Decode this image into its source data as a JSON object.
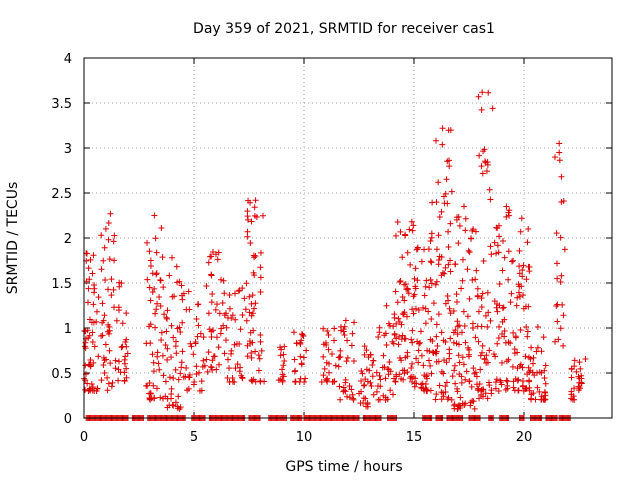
{
  "chart_data": {
    "type": "scatter",
    "title": "Day 359 of 2021, SRMTID for receiver cas1",
    "xlabel": "GPS time / hours",
    "ylabel": "SRMTID / TECUs",
    "xlim": [
      0,
      24
    ],
    "ylim": [
      0,
      4
    ],
    "xticks": [
      0,
      5,
      10,
      15,
      20
    ],
    "xtick_labels": [
      "0",
      "5",
      "10",
      "15",
      "20"
    ],
    "yticks": [
      0,
      0.5,
      1,
      1.5,
      2,
      2.5,
      3,
      3.5,
      4
    ],
    "ytick_labels": [
      "0",
      "0.5",
      "1",
      "1.5",
      "2",
      "2.5",
      "3",
      "3.5",
      "4"
    ],
    "grid": true,
    "marker": "+",
    "marker_color": "#dd0000",
    "notable_points": [
      {
        "x": 18.1,
        "y": 3.62
      },
      {
        "x": 16.3,
        "y": 3.22
      },
      {
        "x": 16.0,
        "y": 3.08
      },
      {
        "x": 21.6,
        "y": 3.05
      },
      {
        "x": 21.6,
        "y": 2.95
      },
      {
        "x": 21.7,
        "y": 2.68
      },
      {
        "x": 16.1,
        "y": 2.62
      },
      {
        "x": 7.8,
        "y": 2.42
      },
      {
        "x": 21.7,
        "y": 2.4
      },
      {
        "x": 19.2,
        "y": 2.35
      },
      {
        "x": 1.2,
        "y": 2.27
      },
      {
        "x": 3.2,
        "y": 2.25
      },
      {
        "x": 19.9,
        "y": 2.22
      },
      {
        "x": 14.9,
        "y": 2.18
      },
      {
        "x": 0.1,
        "y": 1.83
      },
      {
        "x": 6.0,
        "y": 1.82
      },
      {
        "x": 4.0,
        "y": 1.78
      },
      {
        "x": 21.7,
        "y": 1.58
      }
    ],
    "clusters": [
      {
        "x_range": [
          0.0,
          0.4
        ],
        "y_range": [
          0.3,
          1.85
        ],
        "count": 38
      },
      {
        "x_range": [
          0.4,
          1.4
        ],
        "y_range": [
          0.3,
          2.27
        ],
        "count": 60
      },
      {
        "x_range": [
          1.4,
          2.0
        ],
        "y_range": [
          0.4,
          1.6
        ],
        "count": 28
      },
      {
        "x_range": [
          2.8,
          3.6
        ],
        "y_range": [
          0.2,
          2.25
        ],
        "count": 55
      },
      {
        "x_range": [
          3.6,
          4.4
        ],
        "y_range": [
          0.1,
          1.8
        ],
        "count": 45
      },
      {
        "x_range": [
          4.4,
          5.4
        ],
        "y_range": [
          0.3,
          1.55
        ],
        "count": 38
      },
      {
        "x_range": [
          5.4,
          6.5
        ],
        "y_range": [
          0.5,
          1.85
        ],
        "count": 48
      },
      {
        "x_range": [
          6.5,
          7.4
        ],
        "y_range": [
          0.4,
          1.5
        ],
        "count": 35
      },
      {
        "x_range": [
          7.4,
          8.2
        ],
        "y_range": [
          0.4,
          2.42
        ],
        "count": 55
      },
      {
        "x_range": [
          8.8,
          9.2
        ],
        "y_range": [
          0.4,
          0.8
        ],
        "count": 14
      },
      {
        "x_range": [
          9.5,
          10.1
        ],
        "y_range": [
          0.4,
          1.0
        ],
        "count": 24
      },
      {
        "x_range": [
          10.8,
          11.6
        ],
        "y_range": [
          0.4,
          1.0
        ],
        "count": 28
      },
      {
        "x_range": [
          11.6,
          12.3
        ],
        "y_range": [
          0.2,
          1.1
        ],
        "count": 32
      },
      {
        "x_range": [
          12.5,
          13.2
        ],
        "y_range": [
          0.1,
          1.0
        ],
        "count": 32
      },
      {
        "x_range": [
          13.3,
          14.1
        ],
        "y_range": [
          0.2,
          1.25
        ],
        "count": 36
      },
      {
        "x_range": [
          14.1,
          15.0
        ],
        "y_range": [
          0.4,
          2.18
        ],
        "count": 70
      },
      {
        "x_range": [
          15.0,
          15.8
        ],
        "y_range": [
          0.3,
          2.0
        ],
        "count": 62
      },
      {
        "x_range": [
          15.8,
          16.8
        ],
        "y_range": [
          0.2,
          3.22
        ],
        "count": 80
      },
      {
        "x_range": [
          16.8,
          17.8
        ],
        "y_range": [
          0.1,
          2.4
        ],
        "count": 85
      },
      {
        "x_range": [
          17.8,
          18.7
        ],
        "y_range": [
          0.2,
          3.62
        ],
        "count": 70
      },
      {
        "x_range": [
          18.7,
          19.6
        ],
        "y_range": [
          0.3,
          2.35
        ],
        "count": 60
      },
      {
        "x_range": [
          19.6,
          20.3
        ],
        "y_range": [
          0.3,
          2.22
        ],
        "count": 58
      },
      {
        "x_range": [
          20.3,
          21.0
        ],
        "y_range": [
          0.2,
          1.1
        ],
        "count": 34
      },
      {
        "x_range": [
          21.4,
          21.9
        ],
        "y_range": [
          0.8,
          3.05
        ],
        "count": 18
      },
      {
        "x_range": [
          22.1,
          22.8
        ],
        "y_range": [
          0.2,
          0.7
        ],
        "count": 28
      }
    ],
    "zero_segments": [
      [
        0.1,
        2.0
      ],
      [
        2.2,
        2.7
      ],
      [
        2.9,
        4.6
      ],
      [
        4.9,
        5.5
      ],
      [
        5.7,
        7.3
      ],
      [
        7.5,
        8.0
      ],
      [
        8.4,
        9.2
      ],
      [
        9.4,
        9.9
      ],
      [
        10.0,
        12.5
      ],
      [
        12.7,
        13.5
      ],
      [
        13.8,
        14.2
      ],
      [
        15.4,
        15.8
      ],
      [
        16.0,
        16.3
      ],
      [
        16.5,
        17.2
      ],
      [
        17.5,
        18.0
      ],
      [
        18.4,
        18.6
      ],
      [
        18.9,
        19.3
      ],
      [
        19.8,
        20.0
      ],
      [
        20.3,
        20.8
      ],
      [
        21.0,
        21.5
      ],
      [
        21.6,
        22.1
      ]
    ]
  }
}
